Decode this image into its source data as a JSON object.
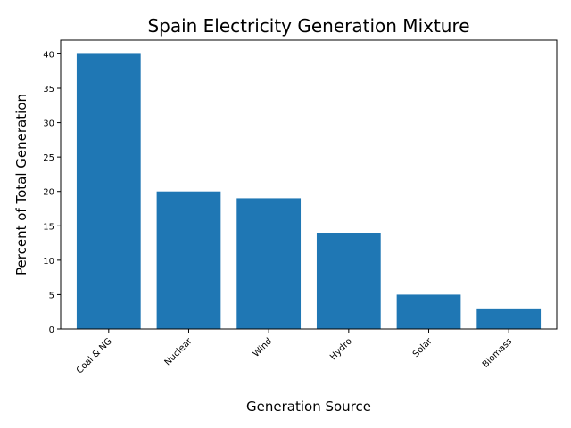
{
  "chart_data": {
    "type": "bar",
    "title": "Spain Electricity Generation Mixture",
    "xlabel": "Generation Source",
    "ylabel": "Percent of Total Generation",
    "categories": [
      "Coal & NG",
      "Nuclear",
      "Wind",
      "Hydro",
      "Solar",
      "Biomass"
    ],
    "values": [
      40,
      20,
      19,
      14,
      5,
      3
    ],
    "ylim": [
      0,
      42
    ],
    "yticks": [
      0,
      5,
      10,
      15,
      20,
      25,
      30,
      35,
      40
    ],
    "bar_color": "#1f77b4",
    "grid": false,
    "legend": "none"
  }
}
